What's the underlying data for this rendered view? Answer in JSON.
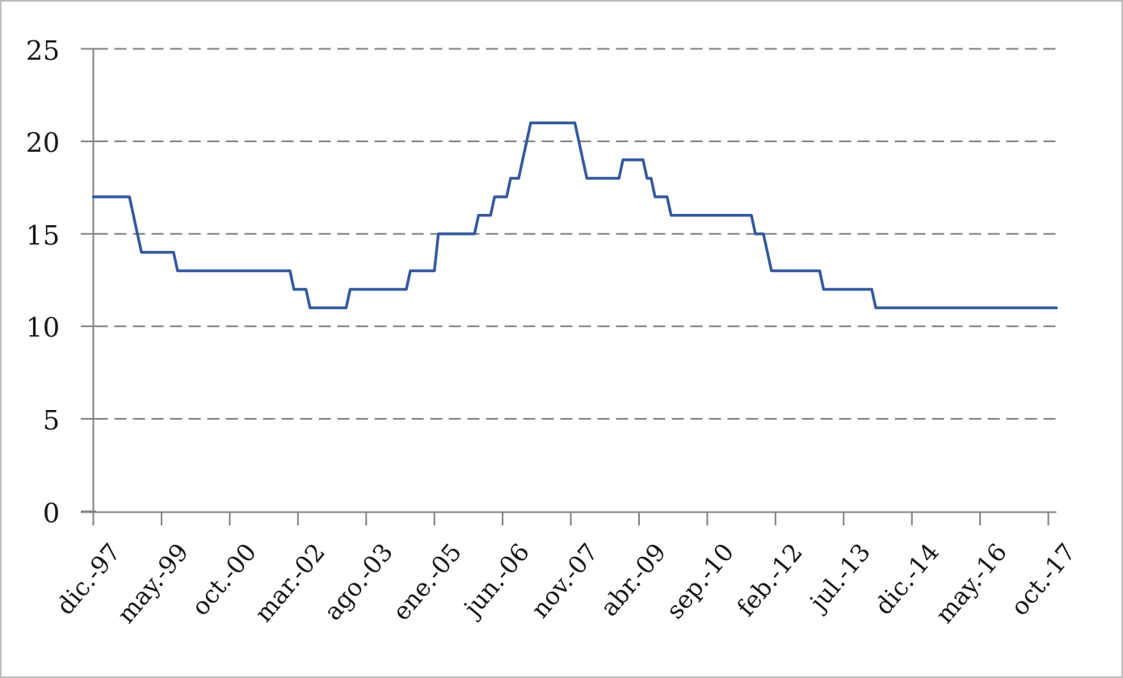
{
  "window": {
    "background_color": "#ffffff",
    "border_color": "#bdbdbd"
  },
  "colors": {
    "line": "#35599d",
    "grid": "#7f7f7f",
    "axis": "#808080",
    "text": "#161616"
  },
  "chart_data": {
    "type": "line",
    "title": "",
    "legend": "none",
    "grid": "horizontal-dashed",
    "y_axis": {
      "tick_values": [
        0,
        5,
        10,
        15,
        20,
        25
      ],
      "tick_labels": [
        "0",
        "5",
        "10",
        "15",
        "20",
        "25"
      ],
      "ylim": [
        0,
        25
      ]
    },
    "x_axis": {
      "tick_labels": [
        "dic.-97",
        "may.-99",
        "oct.-00",
        "mar.-02",
        "ago.-03",
        "ene.-05",
        "jun.-06",
        "nov.-07",
        "abr.-09",
        "sep.-10",
        "feb.-12",
        "jul.-13",
        "dic.-14",
        "may.-16",
        "oct.-17"
      ],
      "months_per_tick": 17,
      "start_month": "dic.-97",
      "end_month": "dic.-17",
      "label_rotation_deg": -50
    },
    "series": [
      {
        "name": "monthly value",
        "color": "#35599d",
        "monthly_runs_start_value_count": [
          [
            "dic.-97",
            17,
            10
          ],
          [
            "oct.-98",
            16,
            1
          ],
          [
            "nov.-98",
            15,
            1
          ],
          [
            "dic.-98",
            14,
            9
          ],
          [
            "sep.-99",
            13,
            29
          ],
          [
            "feb.-02",
            12,
            4
          ],
          [
            "jun.-02",
            11,
            10
          ],
          [
            "abr.-03",
            12,
            15
          ],
          [
            "jul.-04",
            13,
            7
          ],
          [
            "feb.-05",
            15,
            10
          ],
          [
            "dic.-05",
            16,
            4
          ],
          [
            "abr.-06",
            17,
            4
          ],
          [
            "ago.-06",
            18,
            3
          ],
          [
            "nov.-06",
            19,
            1
          ],
          [
            "dic.-06",
            20,
            1
          ],
          [
            "ene.-07",
            21,
            12
          ],
          [
            "ene.-08",
            20,
            1
          ],
          [
            "feb.-08",
            19,
            1
          ],
          [
            "mar.-08",
            18,
            9
          ],
          [
            "dic.-08",
            19,
            6
          ],
          [
            "jun.-09",
            18,
            2
          ],
          [
            "ago.-09",
            17,
            4
          ],
          [
            "dic.-09",
            16,
            21
          ],
          [
            "sep.-11",
            15,
            3
          ],
          [
            "dic.-11",
            14,
            1
          ],
          [
            "ene.-12",
            13,
            13
          ],
          [
            "feb.-13",
            12,
            13
          ],
          [
            "mar.-14",
            11,
            46
          ]
        ]
      }
    ]
  }
}
